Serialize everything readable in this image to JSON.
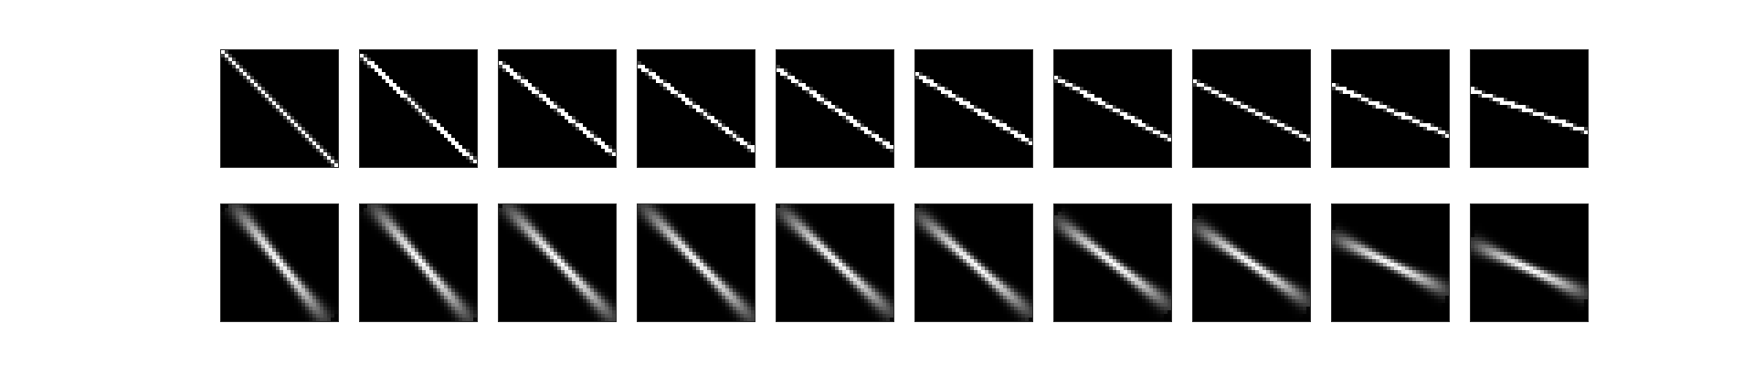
{
  "figure": {
    "background_color": "#ffffff",
    "panel_background_color": "#000000",
    "line_color": "#ffffff",
    "rows": [
      {
        "name": "top-row",
        "style": "sharp",
        "panels": [
          {
            "start": [
              0.0,
              0.0
            ],
            "end": [
              1.0,
              1.0
            ]
          },
          {
            "start": [
              0.0,
              0.03
            ],
            "end": [
              1.0,
              0.97
            ]
          },
          {
            "start": [
              0.0,
              0.1
            ],
            "end": [
              1.0,
              0.9
            ]
          },
          {
            "start": [
              0.0,
              0.12
            ],
            "end": [
              1.0,
              0.86
            ]
          },
          {
            "start": [
              0.0,
              0.15
            ],
            "end": [
              1.0,
              0.85
            ]
          },
          {
            "start": [
              0.0,
              0.2
            ],
            "end": [
              1.0,
              0.8
            ]
          },
          {
            "start": [
              0.0,
              0.23
            ],
            "end": [
              1.0,
              0.77
            ]
          },
          {
            "start": [
              0.0,
              0.27
            ],
            "end": [
              1.0,
              0.77
            ]
          },
          {
            "start": [
              0.0,
              0.3
            ],
            "end": [
              1.0,
              0.73
            ]
          },
          {
            "start": [
              0.0,
              0.34
            ],
            "end": [
              1.0,
              0.7
            ]
          }
        ]
      },
      {
        "name": "bottom-row",
        "style": "blurred",
        "panels": [
          {
            "start": [
              0.1,
              0.0
            ],
            "end": [
              0.9,
              1.0
            ]
          },
          {
            "start": [
              0.1,
              0.0
            ],
            "end": [
              0.95,
              1.0
            ]
          },
          {
            "start": [
              0.05,
              0.0
            ],
            "end": [
              1.0,
              1.0
            ]
          },
          {
            "start": [
              0.03,
              0.0
            ],
            "end": [
              1.0,
              1.0
            ]
          },
          {
            "start": [
              0.02,
              0.03
            ],
            "end": [
              1.0,
              0.95
            ]
          },
          {
            "start": [
              0.0,
              0.07
            ],
            "end": [
              1.0,
              0.95
            ]
          },
          {
            "start": [
              0.0,
              0.12
            ],
            "end": [
              1.0,
              0.88
            ]
          },
          {
            "start": [
              0.0,
              0.17
            ],
            "end": [
              1.0,
              0.85
            ]
          },
          {
            "start": [
              0.0,
              0.27
            ],
            "end": [
              1.0,
              0.75
            ]
          },
          {
            "start": [
              0.0,
              0.33
            ],
            "end": [
              1.0,
              0.78
            ]
          }
        ]
      }
    ]
  }
}
